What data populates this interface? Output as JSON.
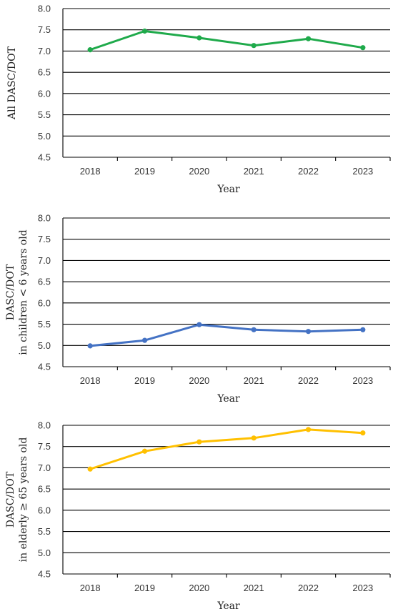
{
  "chart_data": [
    {
      "type": "line",
      "categories": [
        "2018",
        "2019",
        "2020",
        "2021",
        "2022",
        "2023"
      ],
      "series": [
        {
          "values": [
            7.03,
            7.47,
            7.31,
            7.13,
            7.29,
            7.08
          ],
          "color": "#1faa4b"
        }
      ],
      "ylim": [
        4.5,
        8.0
      ],
      "yticks": [
        "8.0",
        "7.5",
        "7.0",
        "6.5",
        "6.0",
        "5.5",
        "5.0",
        "4.5"
      ],
      "xlabel": "Year",
      "ylabel_lines": [
        "All DASC/DOT"
      ],
      "grid": true
    },
    {
      "type": "line",
      "categories": [
        "2018",
        "2019",
        "2020",
        "2021",
        "2022",
        "2023"
      ],
      "series": [
        {
          "values": [
            4.99,
            5.12,
            5.49,
            5.37,
            5.33,
            5.37
          ],
          "color": "#4472c4"
        }
      ],
      "ylim": [
        4.5,
        8.0
      ],
      "yticks": [
        "8.0",
        "7.5",
        "7.0",
        "6.5",
        "6.0",
        "5.5",
        "5.0",
        "4.5"
      ],
      "xlabel": "Year",
      "ylabel_lines": [
        "DASC/DOT",
        "in children < 6 years old"
      ],
      "grid": true
    },
    {
      "type": "line",
      "categories": [
        "2018",
        "2019",
        "2020",
        "2021",
        "2022",
        "2023"
      ],
      "series": [
        {
          "values": [
            6.97,
            7.39,
            7.61,
            7.7,
            7.9,
            7.82
          ],
          "color": "#ffc000"
        }
      ],
      "ylim": [
        4.5,
        8.0
      ],
      "yticks": [
        "8.0",
        "7.5",
        "7.0",
        "6.5",
        "6.0",
        "5.5",
        "5.0",
        "4.5"
      ],
      "xlabel": "Year",
      "ylabel_lines": [
        "DASC/DOT",
        "in elderly ≥ 65 years old"
      ],
      "grid": true
    }
  ]
}
